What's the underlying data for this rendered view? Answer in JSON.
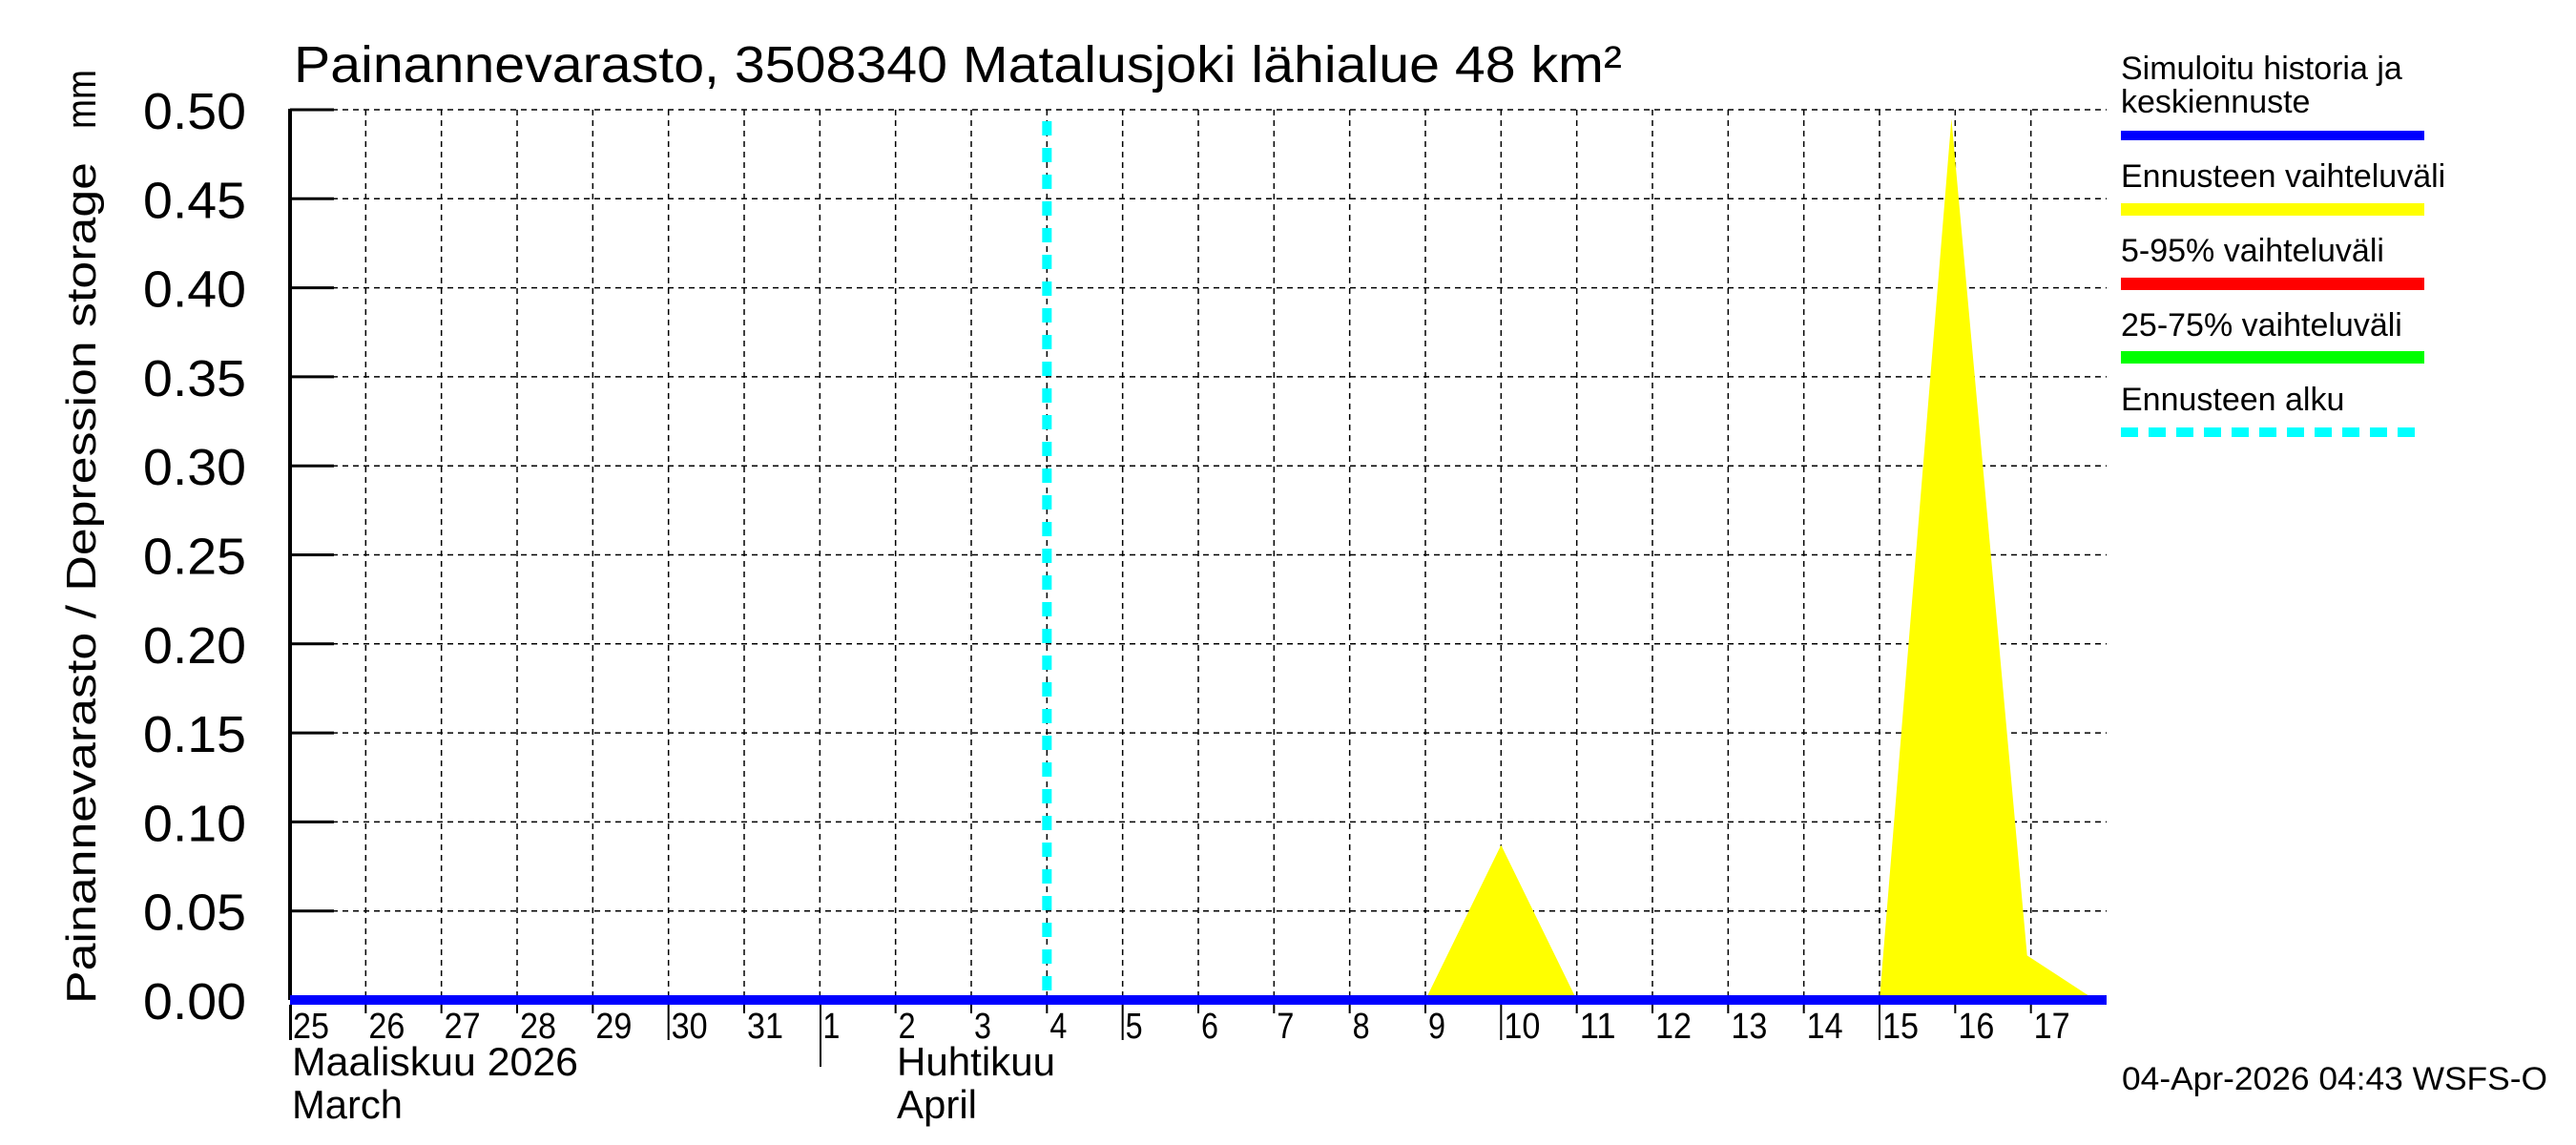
{
  "chart_data": {
    "type": "area",
    "title": "Painannevarasto, 3508340 Matalusjoki lähialue 48 km²",
    "ylabel": "Painannevarasto / Depression storage",
    "yunit": "mm",
    "xlabel": "",
    "ylim": [
      0.0,
      0.5
    ],
    "yticks": [
      "0.00",
      "0.05",
      "0.10",
      "0.15",
      "0.20",
      "0.25",
      "0.30",
      "0.35",
      "0.40",
      "0.45",
      "0.50"
    ],
    "x_day_labels": [
      "25",
      "26",
      "27",
      "28",
      "29",
      "30",
      "31",
      "1",
      "2",
      "3",
      "4",
      "5",
      "6",
      "7",
      "8",
      "9",
      "10",
      "11",
      "12",
      "13",
      "14",
      "15",
      "16",
      "17"
    ],
    "months": [
      {
        "fi": "Maaliskuu 2026",
        "en": "March",
        "start_index": 0
      },
      {
        "fi": "Huhtikuu",
        "en": "April",
        "start_index": 7
      }
    ],
    "grid": true,
    "legend_position": "right",
    "forecast_start_day_index": 10,
    "series": [
      {
        "name": "Simuloitu historia ja keskiennuste",
        "color": "#0000ff",
        "type": "line",
        "x_day_index": [
          0,
          24
        ],
        "values": [
          0.0,
          0.0
        ]
      },
      {
        "name": "Ennusteen vaihteluväli",
        "color": "#ffff00",
        "type": "band",
        "x_day_index": [
          15.0,
          16.0,
          17.0,
          20.0,
          21.0,
          21.95,
          22.95,
          23.85
        ],
        "values": [
          0.0,
          0.087,
          0.0,
          0.0,
          0.0,
          0.495,
          0.025,
          0.0
        ]
      },
      {
        "name": "5-95% vaihteluväli",
        "color": "#ff0000",
        "type": "band",
        "x_day_index": [],
        "values": []
      },
      {
        "name": "25-75% vaihteluväli",
        "color": "#00ff00",
        "type": "band",
        "x_day_index": [],
        "values": []
      },
      {
        "name": "Ennusteen alku",
        "color": "#00ffff",
        "type": "vline",
        "x_day_index": [
          10
        ],
        "values": []
      }
    ]
  },
  "legend": {
    "items": [
      {
        "label_line1": "Simuloitu historia ja",
        "label_line2": "keskiennuste",
        "color": "#0000ff",
        "style": "solid"
      },
      {
        "label_line1": "Ennusteen vaihteluväli",
        "label_line2": "",
        "color": "#ffff00",
        "style": "solid"
      },
      {
        "label_line1": "5-95% vaihteluväli",
        "label_line2": "",
        "color": "#ff0000",
        "style": "solid"
      },
      {
        "label_line1": "25-75% vaihteluväli",
        "label_line2": "",
        "color": "#00ff00",
        "style": "solid"
      },
      {
        "label_line1": "Ennusteen alku",
        "label_line2": "",
        "color": "#00ffff",
        "style": "dashed"
      }
    ]
  },
  "footer": {
    "timestamp": "04-Apr-2026 04:43 WSFS-O"
  }
}
